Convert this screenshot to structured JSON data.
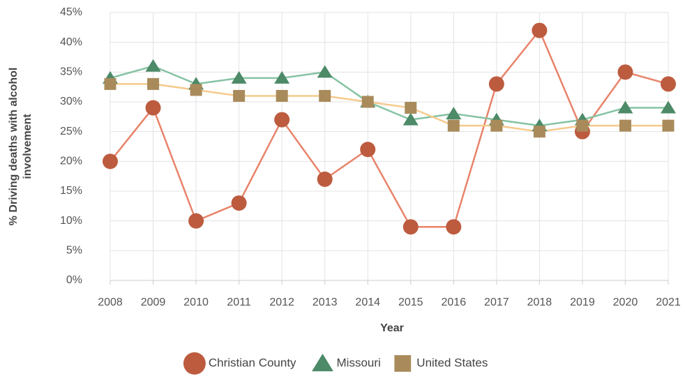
{
  "chart_data": {
    "type": "line",
    "xlabel": "Year",
    "ylabel": [
      "% Driving deaths with alcohol",
      "involvement"
    ],
    "categories": [
      "2008",
      "2009",
      "2010",
      "2011",
      "2012",
      "2013",
      "2014",
      "2015",
      "2016",
      "2017",
      "2018",
      "2019",
      "2020",
      "2021"
    ],
    "series": [
      {
        "name": "Christian County",
        "color": "#e8836a",
        "marker_color": "#bd5b3f",
        "marker": "circle",
        "values": [
          20,
          29,
          10,
          13,
          27,
          17,
          22,
          9,
          9,
          33,
          42,
          25,
          35,
          33
        ]
      },
      {
        "name": "Missouri",
        "color": "#86c3a3",
        "marker_color": "#4c8a68",
        "marker": "triangle",
        "values": [
          34,
          36,
          33,
          34,
          34,
          35,
          30,
          27,
          28,
          27,
          26,
          27,
          29,
          29
        ]
      },
      {
        "name": "United States",
        "color": "#f6ca8c",
        "marker_color": "#a98b5b",
        "marker": "square",
        "values": [
          33,
          33,
          32,
          31,
          31,
          31,
          30,
          29,
          26,
          26,
          25,
          26,
          26,
          26
        ]
      }
    ],
    "ylim": [
      0,
      45
    ],
    "yticks": [
      {
        "value": 0,
        "label": "0%"
      },
      {
        "value": 5,
        "label": "5%"
      },
      {
        "value": 10,
        "label": "10%"
      },
      {
        "value": 15,
        "label": "15%"
      },
      {
        "value": 20,
        "label": "20%"
      },
      {
        "value": 25,
        "label": "25%"
      },
      {
        "value": 30,
        "label": "30%"
      },
      {
        "value": 35,
        "label": "35%"
      },
      {
        "value": 40,
        "label": "40%"
      },
      {
        "value": 45,
        "label": "45%"
      }
    ],
    "grid": true,
    "legend": "bottom"
  }
}
